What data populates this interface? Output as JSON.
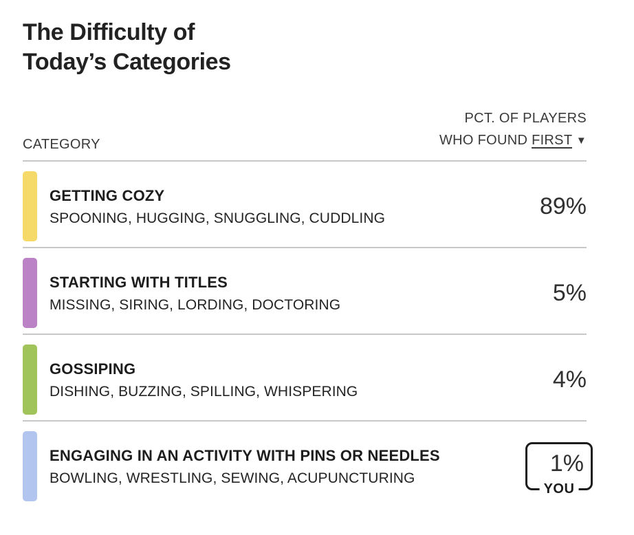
{
  "header": {
    "title_line1": "The Difficulty of",
    "title_line2": "Today’s Categories"
  },
  "table": {
    "category_header": "CATEGORY",
    "value_header_line1": "PCT. OF PLAYERS",
    "value_header_line2_prefix": "WHO FOUND",
    "sort_value": "FIRST",
    "sort_caret": "▼",
    "rows": [
      {
        "name": "GETTING COZY",
        "words": "SPOONING, HUGGING, SNUGGLING, CUDDLING",
        "pct": "89%",
        "color": "#f5da6a",
        "color_name": "yellow"
      },
      {
        "name": "STARTING WITH TITLES",
        "words": "MISSING, SIRING, LORDING, DOCTORING",
        "pct": "5%",
        "color": "#bb83c5",
        "color_name": "purple"
      },
      {
        "name": "GOSSIPING",
        "words": "DISHING, BUZZING, SPILLING, WHISPERING",
        "pct": "4%",
        "color": "#a0c35a",
        "color_name": "green"
      },
      {
        "name": "ENGAGING IN AN ACTIVITY WITH PINS OR NEEDLES",
        "words": "BOWLING, WRESTLING, SEWING, ACUPUNCTURING",
        "pct": "1%",
        "color": "#b2c5ef",
        "color_name": "blue",
        "you_label": "YOU"
      }
    ]
  },
  "colors": {
    "separator": "#c8c8c8",
    "text_primary": "#1d1d1d",
    "you_box_border": "#1c1c1c"
  }
}
